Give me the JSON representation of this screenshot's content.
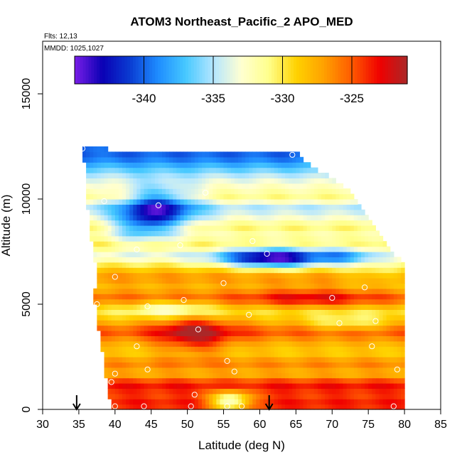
{
  "chart_data": {
    "type": "heatmap",
    "title": "ATOM3 Northeast_Pacific_2 APO_MED",
    "annotations": {
      "flights": "Flts: 12,13",
      "dates": "MMDD: 1025,1027"
    },
    "xlabel": "Latitude (deg N)",
    "ylabel": "Altitude (m)",
    "xlim": [
      30,
      85
    ],
    "ylim": [
      0,
      17500
    ],
    "x_ticks": [
      "30",
      "35",
      "40",
      "45",
      "50",
      "55",
      "60",
      "65",
      "70",
      "75",
      "80",
      "85"
    ],
    "y_ticks": [
      "0",
      "5000",
      "10000",
      "15000"
    ],
    "colorbar": {
      "range": [
        -345,
        -321
      ],
      "ticks": [
        "-340",
        "-335",
        "-330",
        "-325"
      ],
      "colors": [
        "#7a1ee8",
        "#0a00b4",
        "#0a3cd2",
        "#1e8cff",
        "#46c8ff",
        "#b4e6ff",
        "#ffffd2",
        "#ffff8c",
        "#ffd200",
        "#ffa000",
        "#ff5a00",
        "#f00000",
        "#aa2828"
      ]
    },
    "field": {
      "lat_range": [
        35.5,
        80
      ],
      "alt_range": [
        0,
        12500
      ],
      "top_altitude": [
        [
          35.5,
          12400
        ],
        [
          65,
          12200
        ],
        [
          66.5,
          11800
        ],
        [
          68,
          11400
        ],
        [
          70,
          11000
        ],
        [
          72,
          10500
        ],
        [
          73,
          10000
        ],
        [
          75,
          9200
        ],
        [
          77,
          8200
        ],
        [
          79,
          7200
        ],
        [
          80,
          7000
        ]
      ],
      "bottom_latitude": [
        [
          0,
          39.3
        ],
        [
          1000,
          39.2
        ],
        [
          1800,
          38.6
        ],
        [
          3000,
          38.2
        ],
        [
          3800,
          37.7
        ],
        [
          4700,
          37.3
        ],
        [
          5500,
          37.2
        ],
        [
          6500,
          37.5
        ],
        [
          7500,
          37
        ],
        [
          8500,
          36.4
        ],
        [
          10000,
          36.2
        ],
        [
          11500,
          35.8
        ],
        [
          12400,
          35.5
        ]
      ],
      "background": [
        [
          0,
          -324
        ],
        [
          400,
          -323.5
        ],
        [
          700,
          -324.5
        ],
        [
          1200,
          -323
        ],
        [
          1700,
          -328
        ],
        [
          2200,
          -326
        ],
        [
          2700,
          -329
        ],
        [
          3200,
          -327.5
        ],
        [
          3700,
          -324.5
        ],
        [
          4200,
          -328
        ],
        [
          4700,
          -330
        ],
        [
          5300,
          -325
        ],
        [
          5800,
          -328
        ],
        [
          6300,
          -326.5
        ],
        [
          6800,
          -329.5
        ],
        [
          7300,
          -334
        ],
        [
          7800,
          -330
        ],
        [
          8300,
          -332
        ],
        [
          8700,
          -330.5
        ],
        [
          9200,
          -333.5
        ],
        [
          9600,
          -335
        ],
        [
          10100,
          -331
        ],
        [
          10600,
          -332.5
        ],
        [
          11000,
          -334
        ],
        [
          11500,
          -337
        ],
        [
          12000,
          -340
        ],
        [
          12500,
          -340
        ]
      ],
      "features": [
        {
          "lat": 46,
          "alt": 9500,
          "sigma_lat": 3.5,
          "sigma_alt": 750,
          "amp": -9
        },
        {
          "lat": 43,
          "alt": 8700,
          "sigma_lat": 2.5,
          "sigma_alt": 500,
          "amp": -4
        },
        {
          "lat": 62,
          "alt": 7200,
          "sigma_lat": 5,
          "sigma_alt": 320,
          "amp": -12
        },
        {
          "lat": 72,
          "alt": 7300,
          "sigma_lat": 2.5,
          "sigma_alt": 320,
          "amp": -4
        },
        {
          "lat": 51,
          "alt": 3600,
          "sigma_lat": 3.5,
          "sigma_alt": 650,
          "amp": 5
        },
        {
          "lat": 48,
          "alt": 4800,
          "sigma_lat": 4,
          "sigma_alt": 300,
          "amp": -4
        },
        {
          "lat": 56,
          "alt": 400,
          "sigma_lat": 2,
          "sigma_alt": 350,
          "amp": -9
        },
        {
          "lat": 72,
          "alt": 4100,
          "sigma_lat": 4,
          "sigma_alt": 300,
          "amp": -3
        },
        {
          "lat": 67,
          "alt": 5300,
          "sigma_lat": 6,
          "sigma_alt": 350,
          "amp": 3
        },
        {
          "lat": 76,
          "alt": 6500,
          "sigma_lat": 3,
          "sigma_alt": 400,
          "amp": -2
        }
      ]
    },
    "samples": [
      [
        35.5,
        12400
      ],
      [
        64.5,
        12100
      ],
      [
        38.5,
        9900
      ],
      [
        46,
        9700
      ],
      [
        52.5,
        10300
      ],
      [
        49,
        7800
      ],
      [
        59,
        8000
      ],
      [
        43,
        7600
      ],
      [
        61,
        7400
      ],
      [
        80,
        7400
      ],
      [
        40,
        6300
      ],
      [
        55,
        6000
      ],
      [
        37.5,
        5000
      ],
      [
        44.5,
        4900
      ],
      [
        49.5,
        5200
      ],
      [
        58.5,
        4500
      ],
      [
        70,
        5300
      ],
      [
        74.5,
        5800
      ],
      [
        76,
        4200
      ],
      [
        71,
        4100
      ],
      [
        51.5,
        3800
      ],
      [
        43,
        3000
      ],
      [
        75.5,
        3000
      ],
      [
        55.5,
        2300
      ],
      [
        44.5,
        1900
      ],
      [
        56.5,
        1800
      ],
      [
        40,
        1700
      ],
      [
        79,
        1900
      ],
      [
        39.5,
        1300
      ],
      [
        51,
        700
      ],
      [
        40,
        150
      ],
      [
        44,
        150
      ],
      [
        50.5,
        150
      ],
      [
        55.5,
        150
      ],
      [
        57.5,
        150
      ],
      [
        78.5,
        150
      ]
    ],
    "flight_markers_lat": [
      34.7,
      61.3
    ]
  }
}
